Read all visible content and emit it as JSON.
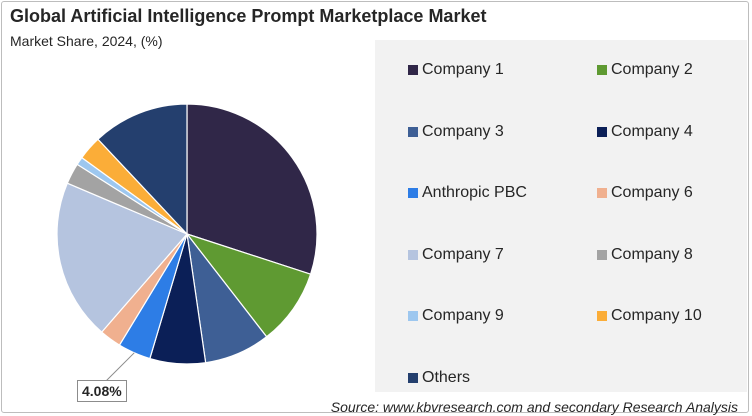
{
  "chart_data": {
    "type": "pie",
    "title": "Global Artificial Intelligence Prompt Marketplace Market",
    "subtitle": "Market Share, 2024, (%)",
    "categories": [
      "Company 1",
      "Company 2",
      "Company 3",
      "Company 4",
      "Anthropic PBC",
      "Company 6",
      "Company 7",
      "Company 8",
      "Company 9",
      "Company 10",
      "Others"
    ],
    "values": [
      30.0,
      9.5,
      8.2,
      6.9,
      4.08,
      2.7,
      20.0,
      2.6,
      1.0,
      3.0,
      12.0
    ],
    "colors": [
      "#302748",
      "#5f9a32",
      "#3e5f95",
      "#0b1f57",
      "#2d7de6",
      "#f0b08f",
      "#b5c4df",
      "#a3a3a3",
      "#9dc7ef",
      "#fbad38",
      "#243f6e"
    ],
    "annotation": "4.08%",
    "legend": "right",
    "source": "Source: www.kbvresearch.com and secondary Research Analysis"
  }
}
